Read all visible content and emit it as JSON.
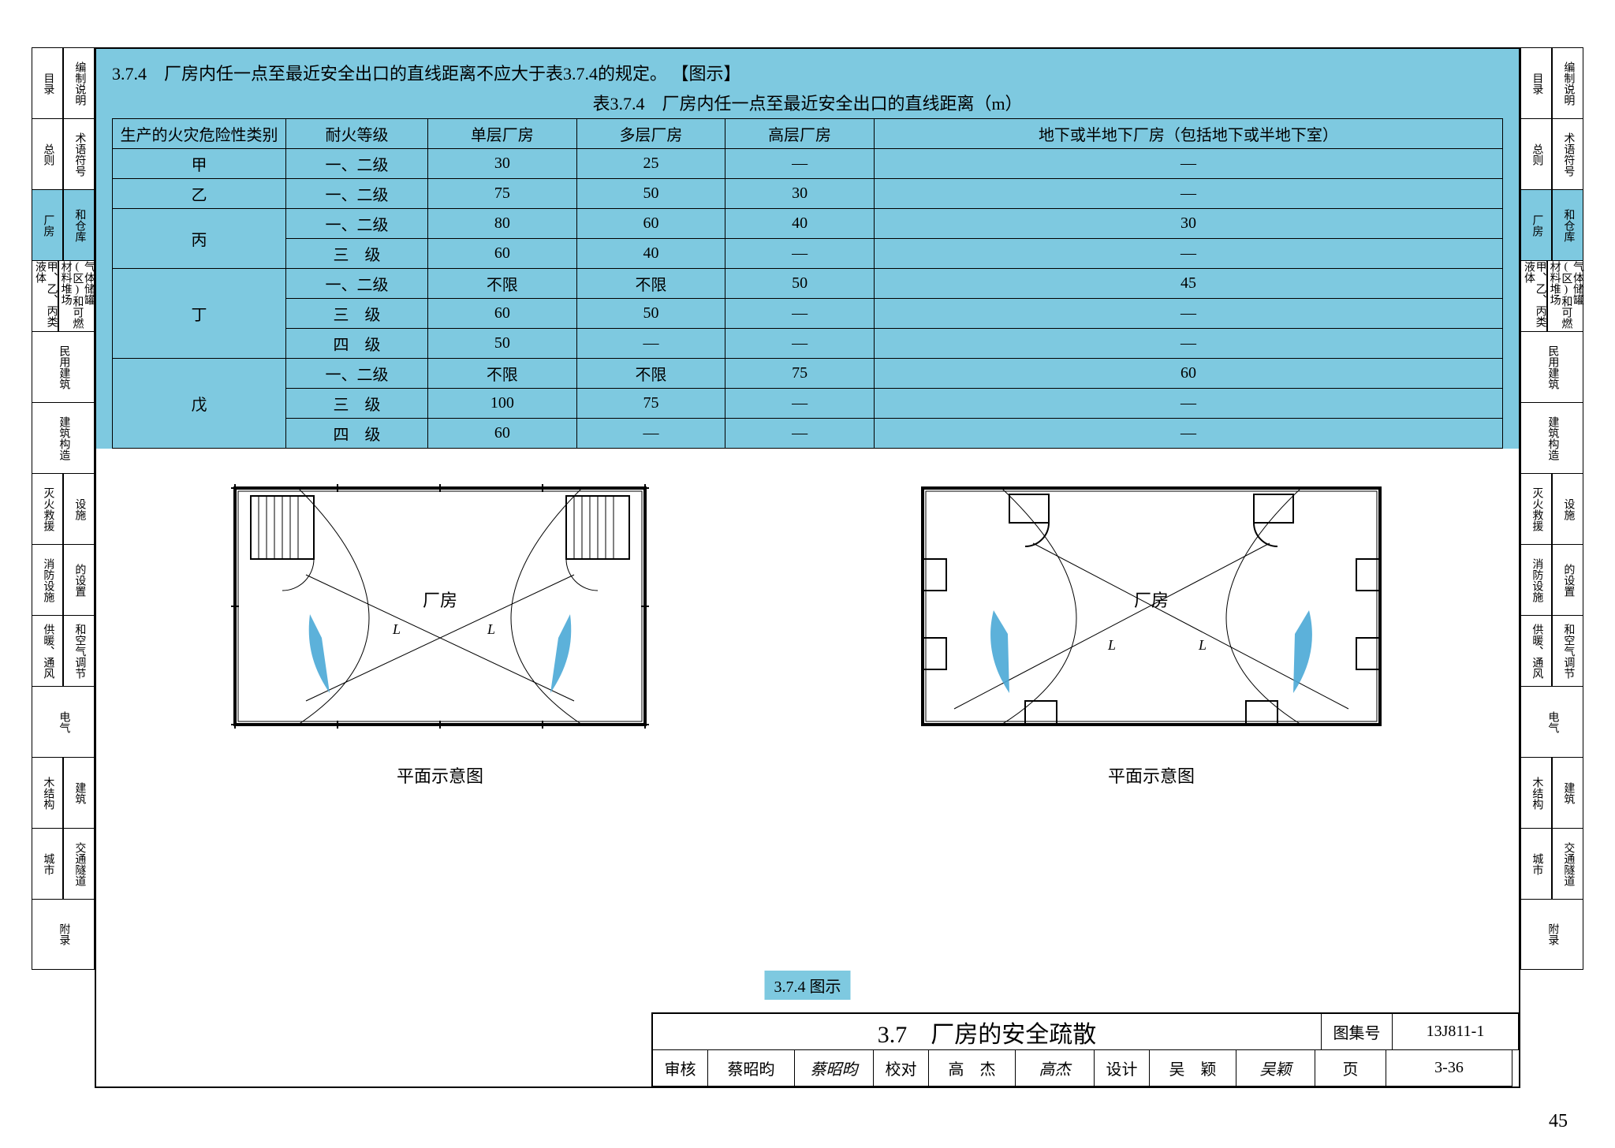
{
  "tabs": [
    {
      "left": "目录",
      "right": "编制说明"
    },
    {
      "left": "总则",
      "right": "术语符号"
    },
    {
      "left": "厂房",
      "right": "和仓库",
      "active": true
    },
    {
      "left": "甲、乙、丙类液体",
      "right": "气体储罐(区)和可燃材料堆场"
    },
    {
      "left": "民用建筑",
      "right": ""
    },
    {
      "left": "建筑构造",
      "right": ""
    },
    {
      "left": "灭火救援",
      "right": "设施"
    },
    {
      "left": "消防设施",
      "right": "的设置"
    },
    {
      "left": "供暖、通风",
      "right": "和空气调节"
    },
    {
      "left": "电气",
      "right": ""
    },
    {
      "left": "木结构",
      "right": "建筑"
    },
    {
      "left": "城市",
      "right": "交通隧道"
    },
    {
      "left": "附录",
      "right": ""
    }
  ],
  "clause": "3.7.4　厂房内任一点至最近安全出口的直线距离不应大于表3.7.4的规定。 【图示】",
  "tableTitle": "表3.7.4　厂房内任一点至最近安全出口的直线距离（m）",
  "headers": [
    "生产的火灾危险性类别",
    "耐火等级",
    "单层厂房",
    "多层厂房",
    "高层厂房",
    "地下或半地下厂房（包括地下或半地下室）"
  ],
  "rows": [
    {
      "cat": "甲",
      "grade": "一、二级",
      "v": [
        "30",
        "25",
        "—",
        "—"
      ]
    },
    {
      "cat": "乙",
      "grade": "一、二级",
      "v": [
        "75",
        "50",
        "30",
        "—"
      ]
    },
    {
      "cat": "丙",
      "grade": "一、二级",
      "v": [
        "80",
        "60",
        "40",
        "30"
      ],
      "rowspan": 2
    },
    {
      "grade": "三　级",
      "v": [
        "60",
        "40",
        "—",
        "—"
      ]
    },
    {
      "cat": "丁",
      "grade": "一、二级",
      "v": [
        "不限",
        "不限",
        "50",
        "45"
      ],
      "rowspan": 3
    },
    {
      "grade": "三　级",
      "v": [
        "60",
        "50",
        "—",
        "—"
      ]
    },
    {
      "grade": "四　级",
      "v": [
        "50",
        "—",
        "—",
        "—"
      ]
    },
    {
      "cat": "戊",
      "grade": "一、二级",
      "v": [
        "不限",
        "不限",
        "75",
        "60"
      ],
      "rowspan": 3
    },
    {
      "grade": "三　级",
      "v": [
        "100",
        "75",
        "—",
        "—"
      ]
    },
    {
      "grade": "四　级",
      "v": [
        "60",
        "—",
        "—",
        "—"
      ]
    }
  ],
  "diagramLabel": "厂房",
  "diagramL": "L",
  "diagramCaption": "平面示意图",
  "figRef": "3.7.4 图示",
  "titleBlock": {
    "title": "3.7　厂房的安全疏散",
    "setLabel": "图集号",
    "setNo": "13J811-1",
    "row2": [
      {
        "l": "审核",
        "v": "蔡昭昀",
        "sig": "蔡昭昀"
      },
      {
        "l": "校对",
        "v": "高　杰",
        "sig": "高杰"
      },
      {
        "l": "设计",
        "v": "吴　颖",
        "sig": "吴颖"
      }
    ],
    "pageLabel": "页",
    "pageNo": "3-36"
  },
  "pageNumber": "45",
  "colors": {
    "accent": "#7ec9e0",
    "arrow": "#4aa9d6"
  }
}
